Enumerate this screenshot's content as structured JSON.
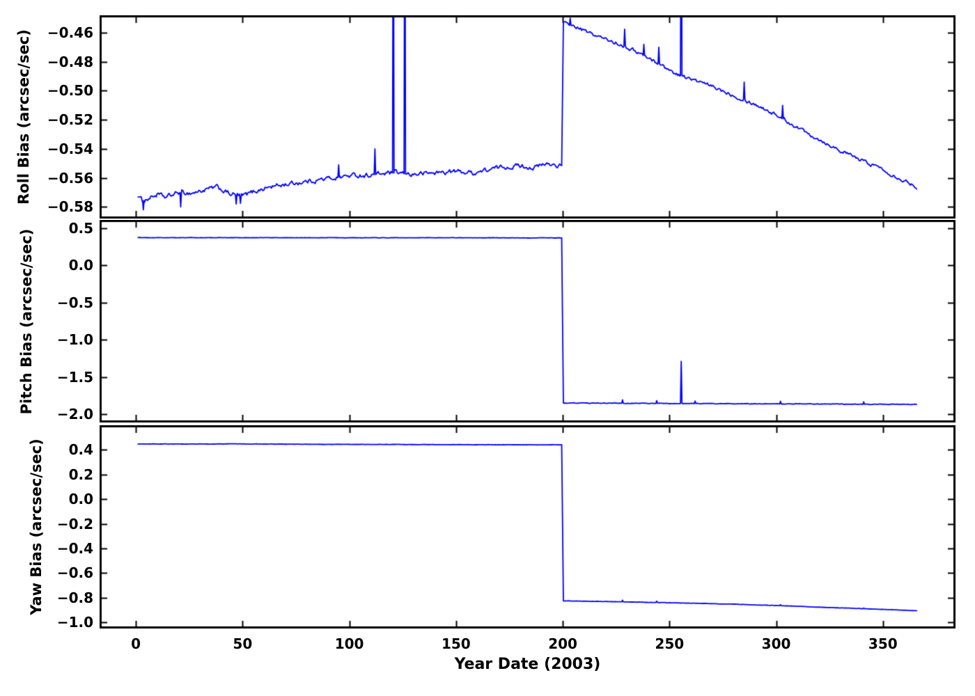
{
  "figure": {
    "background": "#ffffff",
    "axis_color": "#000000",
    "line_color": "#0000ff",
    "xlabel": "Year Date (2003)",
    "xlim": [
      -17,
      384
    ],
    "xtick_values": [
      0,
      50,
      100,
      150,
      200,
      250,
      300,
      350
    ],
    "xtick_labels": [
      "0",
      "50",
      "100",
      "150",
      "200",
      "250",
      "300",
      "350"
    ]
  },
  "chart_data": [
    {
      "type": "line",
      "name": "roll-bias",
      "ylabel": "Roll Bias (arcsec/sec)",
      "ylim": [
        -0.588,
        -0.448
      ],
      "ytick_values": [
        -0.46,
        -0.48,
        -0.5,
        -0.52,
        -0.54,
        -0.56,
        -0.58
      ],
      "ytick_labels": [
        "−0.46",
        "−0.48",
        "−0.50",
        "−0.52",
        "−0.54",
        "−0.56",
        "−0.58"
      ],
      "series": {
        "segments": [
          {
            "noise": 0.0017,
            "points": [
              [
                1,
                -0.572
              ],
              [
                3,
                -0.576
              ],
              [
                6,
                -0.574
              ],
              [
                10,
                -0.5715
              ],
              [
                14,
                -0.5735
              ],
              [
                20,
                -0.57
              ],
              [
                26,
                -0.5705
              ],
              [
                32,
                -0.5685
              ],
              [
                38,
                -0.5665
              ],
              [
                44,
                -0.571
              ],
              [
                50,
                -0.5725
              ],
              [
                56,
                -0.569
              ],
              [
                62,
                -0.5665
              ],
              [
                70,
                -0.5645
              ],
              [
                80,
                -0.5625
              ],
              [
                90,
                -0.5605
              ],
              [
                100,
                -0.5585
              ],
              [
                110,
                -0.558
              ],
              [
                120,
                -0.5565
              ],
              [
                130,
                -0.5575
              ],
              [
                140,
                -0.5565
              ],
              [
                150,
                -0.5555
              ],
              [
                158,
                -0.5565
              ],
              [
                165,
                -0.5545
              ],
              [
                172,
                -0.5525
              ],
              [
                180,
                -0.5515
              ],
              [
                186,
                -0.553
              ],
              [
                193,
                -0.5505
              ],
              [
                199.7,
                -0.5515
              ]
            ]
          },
          {
            "noise": 0.0013,
            "points": [
              [
                200.3,
                -0.4535
              ],
              [
                206,
                -0.456
              ],
              [
                212,
                -0.46
              ],
              [
                220,
                -0.4645
              ],
              [
                228,
                -0.4685
              ],
              [
                236,
                -0.474
              ],
              [
                244,
                -0.4805
              ],
              [
                252,
                -0.4875
              ],
              [
                260,
                -0.492
              ],
              [
                268,
                -0.496
              ],
              [
                276,
                -0.5005
              ],
              [
                284,
                -0.5055
              ],
              [
                292,
                -0.5105
              ],
              [
                300,
                -0.5165
              ],
              [
                308,
                -0.5235
              ],
              [
                316,
                -0.53
              ],
              [
                324,
                -0.5365
              ],
              [
                332,
                -0.5425
              ],
              [
                340,
                -0.548
              ],
              [
                348,
                -0.5525
              ],
              [
                356,
                -0.559
              ],
              [
                366,
                -0.566
              ]
            ]
          }
        ],
        "spikes": [
          [
            3.5,
            -0.582
          ],
          [
            21,
            -0.58
          ],
          [
            47,
            -0.578
          ],
          [
            49,
            -0.5775
          ],
          [
            95,
            -0.551
          ],
          [
            112,
            -0.54
          ],
          [
            120.6,
            -0.3
          ],
          [
            126,
            -0.3
          ],
          [
            203.5,
            -0.45
          ],
          [
            229,
            -0.4575
          ],
          [
            238,
            -0.468
          ],
          [
            245,
            -0.47
          ],
          [
            255.5,
            -0.3
          ],
          [
            285,
            -0.494
          ],
          [
            303,
            -0.51
          ]
        ]
      }
    },
    {
      "type": "line",
      "name": "pitch-bias",
      "ylabel": "Pitch Bias (arcsec/sec)",
      "ylim": [
        -2.11,
        0.61
      ],
      "ytick_values": [
        0.5,
        0.0,
        -0.5,
        -1.0,
        -1.5,
        -2.0
      ],
      "ytick_labels": [
        "0.5",
        "0.0",
        "−0.5",
        "−1.0",
        "−1.5",
        "−2.0"
      ],
      "series": {
        "segments": [
          {
            "noise": 0.002,
            "points": [
              [
                1,
                0.372
              ],
              [
                100,
                0.371
              ],
              [
                199.7,
                0.369
              ]
            ]
          },
          {
            "noise": 0.004,
            "points": [
              [
                200.3,
                -1.849
              ],
              [
                240,
                -1.853
              ],
              [
                280,
                -1.858
              ],
              [
                320,
                -1.862
              ],
              [
                366,
                -1.868
              ]
            ]
          }
        ],
        "spikes": [
          [
            228,
            -1.806
          ],
          [
            244,
            -1.816
          ],
          [
            255.5,
            -1.29
          ],
          [
            262,
            -1.822
          ],
          [
            302,
            -1.824
          ],
          [
            341,
            -1.832
          ]
        ]
      }
    },
    {
      "type": "line",
      "name": "yaw-bias",
      "ylabel": "Yaw Bias (arcsec/sec)",
      "ylim": [
        -1.05,
        0.6
      ],
      "ytick_values": [
        0.4,
        0.2,
        0.0,
        -0.2,
        -0.4,
        -0.6,
        -0.8,
        -1.0
      ],
      "ytick_labels": [
        "0.4",
        "0.2",
        "0.0",
        "−0.2",
        "−0.4",
        "−0.6",
        "−0.8",
        "−1.0"
      ],
      "series": {
        "segments": [
          {
            "noise": 0.0012,
            "points": [
              [
                1,
                0.4475
              ],
              [
                30,
                0.448
              ],
              [
                50,
                0.4485
              ],
              [
                80,
                0.4455
              ],
              [
                110,
                0.4445
              ],
              [
                150,
                0.4425
              ],
              [
                199.7,
                0.4415
              ]
            ]
          },
          {
            "noise": 0.0012,
            "points": [
              [
                200.3,
                -0.826
              ],
              [
                220,
                -0.831
              ],
              [
                240,
                -0.8375
              ],
              [
                260,
                -0.8445
              ],
              [
                280,
                -0.853
              ],
              [
                300,
                -0.8635
              ],
              [
                320,
                -0.8765
              ],
              [
                340,
                -0.889
              ],
              [
                355,
                -0.898
              ],
              [
                366,
                -0.9065
              ]
            ]
          }
        ],
        "spikes": [
          [
            228,
            -0.82
          ],
          [
            244,
            -0.8285
          ],
          [
            302,
            -0.856
          ],
          [
            341,
            -0.8835
          ]
        ]
      }
    }
  ]
}
